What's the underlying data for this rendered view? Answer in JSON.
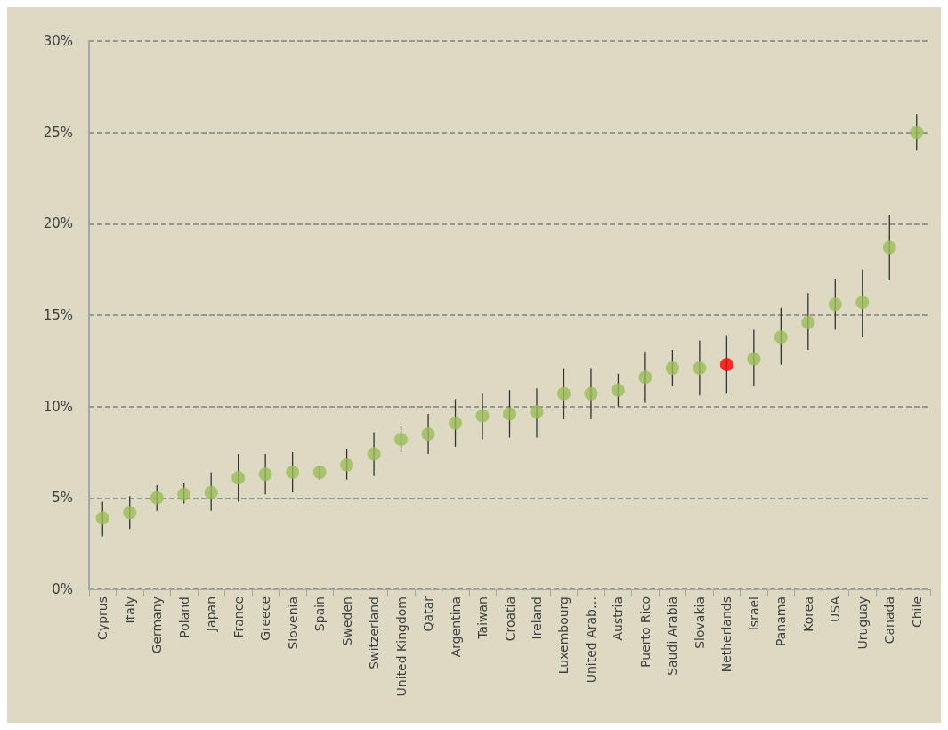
{
  "chart_data": {
    "type": "scatter",
    "categories": [
      "Cyprus",
      "Italy",
      "Germany",
      "Poland",
      "Japan",
      "France",
      "Greece",
      "Slovenia",
      "Spain",
      "Sweden",
      "Switzerland",
      "United Kingdom",
      "Qatar",
      "Argentina",
      "Taiwan",
      "Croatia",
      "Ireland",
      "Luxembourg",
      "United Arab…",
      "Austria",
      "Puerto Rico",
      "Saudi Arabia",
      "Slovakia",
      "Netherlands",
      "Israel",
      "Panama",
      "Korea",
      "USA",
      "Uruguay",
      "Canada",
      "Chile"
    ],
    "values": [
      3.9,
      4.2,
      5.0,
      5.2,
      5.3,
      6.1,
      6.3,
      6.4,
      6.4,
      6.8,
      7.4,
      8.2,
      8.5,
      9.1,
      9.5,
      9.6,
      9.7,
      10.7,
      10.7,
      10.9,
      11.6,
      12.1,
      12.1,
      12.3,
      12.6,
      13.8,
      14.6,
      15.6,
      15.7,
      18.7,
      25.0
    ],
    "errors": [
      [
        2.9,
        4.8
      ],
      [
        3.3,
        5.1
      ],
      [
        4.3,
        5.7
      ],
      [
        4.7,
        5.8
      ],
      [
        4.3,
        6.4
      ],
      [
        4.8,
        7.4
      ],
      [
        5.2,
        7.4
      ],
      [
        5.3,
        7.5
      ],
      [
        6.0,
        6.7
      ],
      [
        6.0,
        7.7
      ],
      [
        6.2,
        8.6
      ],
      [
        7.5,
        8.9
      ],
      [
        7.4,
        9.6
      ],
      [
        7.8,
        10.4
      ],
      [
        8.2,
        10.7
      ],
      [
        8.3,
        10.9
      ],
      [
        8.3,
        11.0
      ],
      [
        9.3,
        12.1
      ],
      [
        9.3,
        12.1
      ],
      [
        10.0,
        11.8
      ],
      [
        10.2,
        13.0
      ],
      [
        11.1,
        13.1
      ],
      [
        10.6,
        13.6
      ],
      [
        10.7,
        13.9
      ],
      [
        11.1,
        14.2
      ],
      [
        12.3,
        15.4
      ],
      [
        13.1,
        16.2
      ],
      [
        14.2,
        17.0
      ],
      [
        13.8,
        17.5
      ],
      [
        16.9,
        20.5
      ],
      [
        24.0,
        26.0
      ]
    ],
    "colors": [
      "#9bbb59",
      "#9bbb59",
      "#9bbb59",
      "#9bbb59",
      "#9bbb59",
      "#9bbb59",
      "#9bbb59",
      "#9bbb59",
      "#9bbb59",
      "#9bbb59",
      "#9bbb59",
      "#9bbb59",
      "#9bbb59",
      "#9bbb59",
      "#9bbb59",
      "#9bbb59",
      "#9bbb59",
      "#9bbb59",
      "#9bbb59",
      "#9bbb59",
      "#9bbb59",
      "#9bbb59",
      "#9bbb59",
      "#ff0000",
      "#9bbb59",
      "#9bbb59",
      "#9bbb59",
      "#9bbb59",
      "#9bbb59",
      "#9bbb59",
      "#9bbb59"
    ],
    "ylim": [
      0,
      30
    ],
    "yticks": [
      {
        "value": 0,
        "label": "0%"
      },
      {
        "value": 5,
        "label": "5%"
      },
      {
        "value": 10,
        "label": "10%"
      },
      {
        "value": 15,
        "label": "15%"
      },
      {
        "value": 20,
        "label": "20%"
      },
      {
        "value": 25,
        "label": "25%"
      },
      {
        "value": 30,
        "label": "30%"
      }
    ],
    "grid": "y",
    "marker": "circle"
  }
}
